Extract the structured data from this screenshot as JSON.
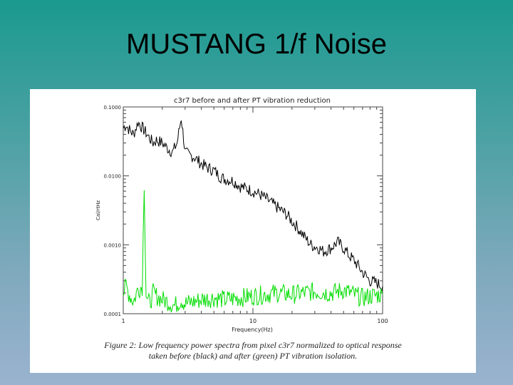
{
  "slide": {
    "title": "MUSTANG 1/f Noise"
  },
  "figure": {
    "caption_line1": "Figure 2:  Low frequency power spectra from pixel c3r7 normalized to optical response",
    "caption_line2": "taken before (black) and after (green) PT vibration isolation."
  },
  "colors": {
    "before": "#000000",
    "after": "#00dd00"
  },
  "chart_data": {
    "type": "line",
    "title": "c3r7 before and after PT vibration reduction",
    "xlabel": "Frequency(Hz)",
    "ylabel": "Cal/rtHz",
    "xscale": "log",
    "yscale": "log",
    "xlim": [
      1,
      100
    ],
    "ylim": [
      0.0001,
      0.1
    ],
    "xticks": [
      "1",
      "10",
      "100"
    ],
    "yticks": [
      "0.0001",
      "0.0010",
      "0.0100",
      "0.1000"
    ],
    "grid": false,
    "series": [
      {
        "color": "before",
        "x": [
          1.0,
          1.05,
          1.1,
          1.2,
          1.3,
          1.4,
          1.5,
          1.6,
          1.7,
          1.8,
          2.0,
          2.2,
          2.4,
          2.6,
          2.8,
          3.0,
          3.2,
          3.5,
          4.0,
          4.5,
          5.0,
          5.5,
          6.0,
          7.0,
          8.0,
          9.0,
          10,
          11,
          12,
          14,
          16,
          18,
          20,
          22,
          25,
          28,
          32,
          35,
          40,
          45,
          50,
          55,
          60,
          70,
          80,
          90,
          100
        ],
        "y": [
          0.05,
          0.055,
          0.048,
          0.04,
          0.06,
          0.05,
          0.042,
          0.035,
          0.03,
          0.033,
          0.03,
          0.025,
          0.022,
          0.03,
          0.07,
          0.022,
          0.02,
          0.019,
          0.015,
          0.013,
          0.012,
          0.01,
          0.009,
          0.0085,
          0.007,
          0.0065,
          0.006,
          0.0055,
          0.005,
          0.004,
          0.0033,
          0.0028,
          0.0022,
          0.0018,
          0.0013,
          0.001,
          0.0009,
          0.0008,
          0.0009,
          0.0011,
          0.0009,
          0.0007,
          0.0006,
          0.0004,
          0.0003,
          0.00028,
          0.00025
        ]
      },
      {
        "color": "after",
        "x": [
          1.0,
          1.05,
          1.1,
          1.15,
          1.2,
          1.3,
          1.4,
          1.45,
          1.5,
          1.55,
          1.6,
          1.7,
          1.8,
          2.0,
          2.2,
          2.5,
          2.8,
          3.0,
          3.5,
          4.0,
          5.0,
          6.0,
          8.0,
          10,
          15,
          20,
          30,
          40,
          50,
          60,
          70,
          80,
          100
        ],
        "y": [
          0.0002,
          0.00025,
          0.0002,
          0.00017,
          0.00015,
          0.00023,
          0.00025,
          0.008,
          0.0002,
          0.00015,
          0.00014,
          0.0002,
          0.00018,
          0.00016,
          0.00015,
          0.00013,
          0.00016,
          0.00014,
          0.00015,
          0.00016,
          0.00017,
          0.00016,
          0.00017,
          0.00018,
          0.0002,
          0.00019,
          0.00021,
          0.0002,
          0.00022,
          0.00019,
          0.00017,
          0.00018,
          0.00019
        ]
      }
    ]
  }
}
